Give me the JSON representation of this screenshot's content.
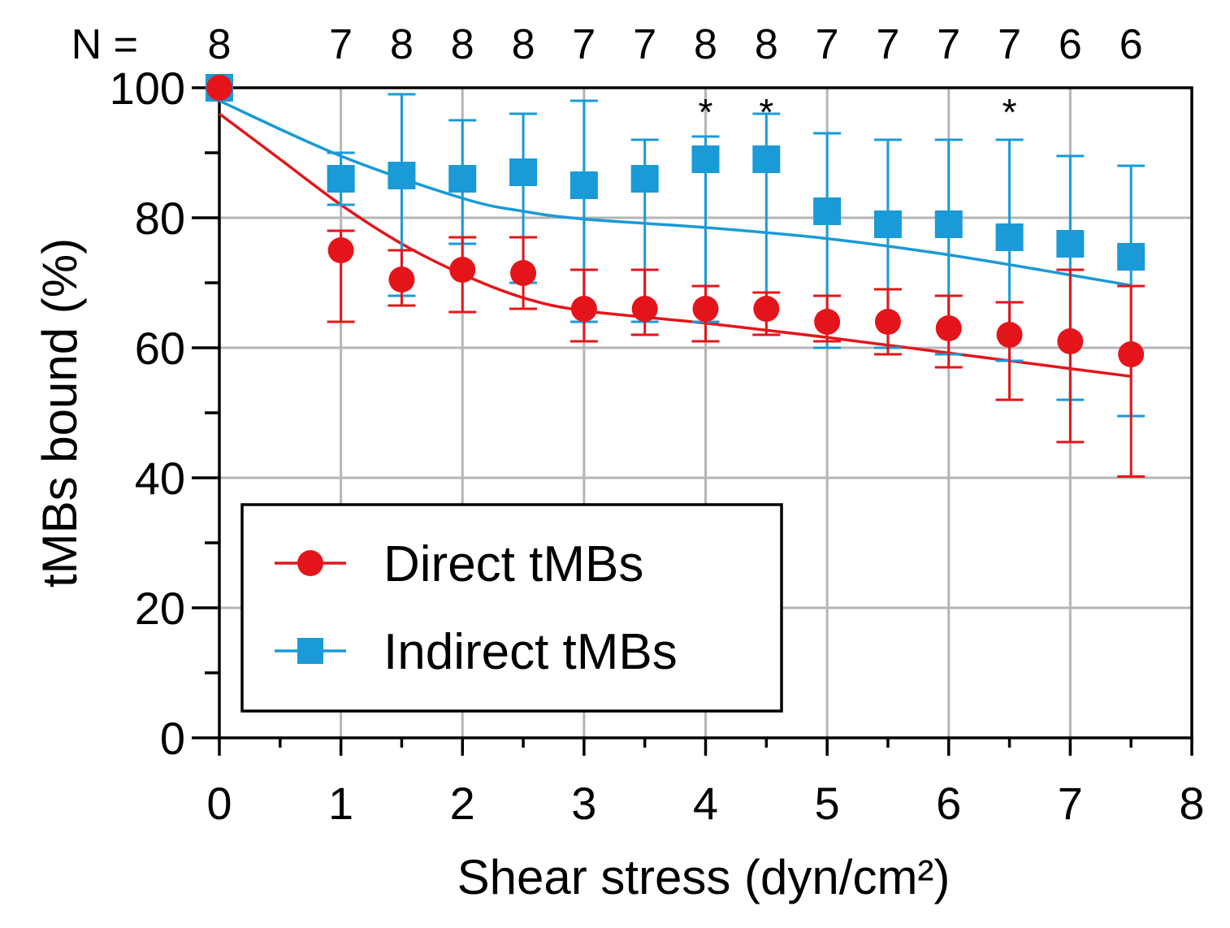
{
  "chart_data": {
    "type": "scatter",
    "title": "",
    "xlabel": "Shear stress (dyn/cm²)",
    "ylabel": "tMBs bound (%)",
    "xlim": [
      0,
      8
    ],
    "ylim": [
      0,
      100
    ],
    "xticks": [
      "0",
      "1",
      "2",
      "3",
      "4",
      "5",
      "6",
      "7",
      "8"
    ],
    "yticks": [
      "0",
      "20",
      "40",
      "60",
      "80",
      "100"
    ],
    "grid": true,
    "n_prefix": "N =",
    "n_labels": [
      {
        "x": 0,
        "label": "8"
      },
      {
        "x": 1,
        "label": "7"
      },
      {
        "x": 1.5,
        "label": "8"
      },
      {
        "x": 2,
        "label": "8"
      },
      {
        "x": 2.5,
        "label": "8"
      },
      {
        "x": 3,
        "label": "7"
      },
      {
        "x": 3.5,
        "label": "7"
      },
      {
        "x": 4,
        "label": "8"
      },
      {
        "x": 4.5,
        "label": "8"
      },
      {
        "x": 5,
        "label": "7"
      },
      {
        "x": 5.5,
        "label": "7"
      },
      {
        "x": 6,
        "label": "7"
      },
      {
        "x": 6.5,
        "label": "7"
      },
      {
        "x": 7,
        "label": "6"
      },
      {
        "x": 7.5,
        "label": "6"
      }
    ],
    "significance": [
      {
        "x": 4,
        "y": 97,
        "label": "*"
      },
      {
        "x": 4.5,
        "y": 97,
        "label": "*"
      },
      {
        "x": 6.5,
        "y": 97,
        "label": "*"
      }
    ],
    "series": [
      {
        "name": "Indirect tMBs",
        "color": "#1a9ad6",
        "marker": "square",
        "x": [
          0,
          1,
          1.5,
          2,
          2.5,
          3,
          3.5,
          4,
          4.5,
          5,
          5.5,
          6,
          6.5,
          7,
          7.5
        ],
        "y": [
          100,
          86,
          86.5,
          86,
          87,
          85,
          86,
          89,
          89,
          81,
          79,
          79,
          77,
          76,
          74
        ],
        "err_low": [
          null,
          82,
          68,
          76,
          70,
          64,
          64,
          64,
          62,
          60,
          60,
          59,
          58,
          52,
          49.5
        ],
        "err_high": [
          null,
          90,
          99,
          95,
          96,
          98,
          92,
          92.5,
          96,
          93,
          92,
          92,
          92,
          89.5,
          88
        ],
        "fit_x": [
          0,
          1,
          2,
          2.5,
          3,
          4,
          5,
          6,
          7,
          7.5
        ],
        "fit_y": [
          98,
          89.5,
          83,
          81,
          79.8,
          78.5,
          76.8,
          74.3,
          71.2,
          69.6
        ]
      },
      {
        "name": "Direct tMBs",
        "color": "#e4151a",
        "marker": "circle",
        "x": [
          0,
          1,
          1.5,
          2,
          2.5,
          3,
          3.5,
          4,
          4.5,
          5,
          5.5,
          6,
          6.5,
          7,
          7.5
        ],
        "y": [
          100,
          75,
          70.5,
          72,
          71.5,
          66,
          66,
          66,
          66,
          64,
          64,
          63,
          62,
          61,
          59
        ],
        "err_low": [
          null,
          64,
          66.5,
          65.5,
          66,
          61,
          62,
          61,
          62,
          61,
          59,
          57,
          52,
          45.5,
          40.2
        ],
        "err_high": [
          null,
          78,
          75,
          77,
          77,
          72,
          72,
          69.5,
          68.5,
          68,
          69,
          68,
          67,
          72,
          69.5
        ],
        "fit_x": [
          0,
          0.5,
          1,
          1.5,
          2,
          2.5,
          3,
          4,
          5,
          6,
          7,
          7.5
        ],
        "fit_y": [
          96,
          89,
          82,
          76,
          71.3,
          67.7,
          65.7,
          63.8,
          61.6,
          59.2,
          56.8,
          55.6
        ]
      }
    ],
    "legend": {
      "position": "lower-left",
      "entries": [
        "Direct tMBs",
        "Indirect tMBs"
      ]
    }
  }
}
